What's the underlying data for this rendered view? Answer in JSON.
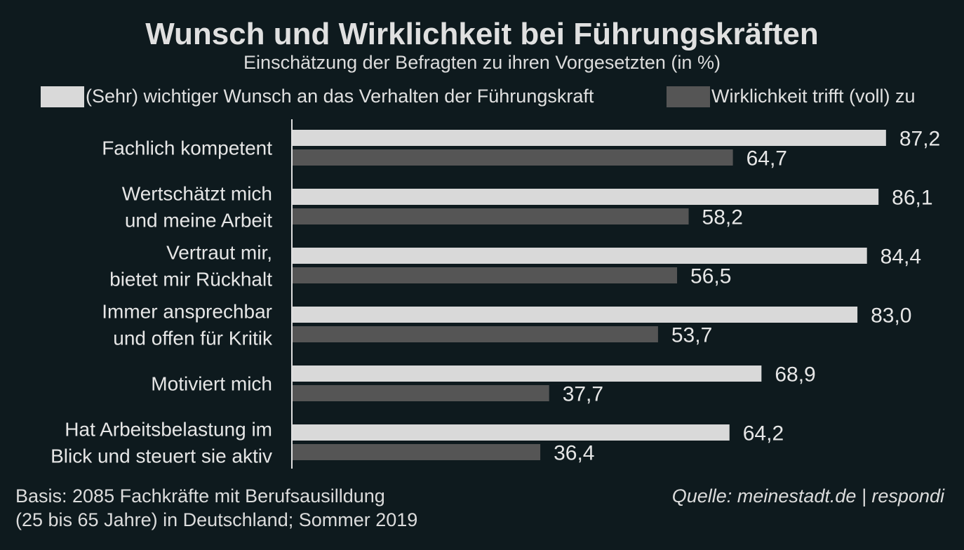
{
  "chart_data": {
    "type": "bar",
    "orientation": "horizontal",
    "title": "Wunsch und Wirklichkeit bei Führungskräften",
    "subtitle": "Einschätzung der Befragten zu ihren Vorgesetzten (in %)",
    "categories": [
      [
        "Fachlich kompetent"
      ],
      [
        "Wertschätzt mich",
        "und meine Arbeit"
      ],
      [
        "Vertraut mir,",
        "bietet mir Rückhalt"
      ],
      [
        "Immer ansprechbar",
        "und offen für Kritik"
      ],
      [
        "Motiviert mich"
      ],
      [
        "Hat Arbeitsbelastung im",
        "Blick und steuert sie aktiv"
      ]
    ],
    "series": [
      {
        "name": "(Sehr) wichtiger Wunsch an das Verhalten der Führungskraft",
        "color": "#d9d9d9",
        "values": [
          87.2,
          86.1,
          84.4,
          83.0,
          68.9,
          64.2
        ],
        "labels": [
          "87,2",
          "86,1",
          "84,4",
          "83,0",
          "68,9",
          "64,2"
        ]
      },
      {
        "name": "Wirklichkeit trifft (voll) zu",
        "color": "#555555",
        "values": [
          64.7,
          58.2,
          56.5,
          53.7,
          37.7,
          36.4
        ],
        "labels": [
          "64,7",
          "58,2",
          "56,5",
          "53,7",
          "37,7",
          "36,4"
        ]
      }
    ],
    "xlim": [
      0,
      100
    ],
    "grid": false,
    "legend": "top"
  },
  "footer": {
    "basis_line1": "Basis: 2085 Fachkräfte mit Berufsausilldung",
    "basis_line2": "(25 bis 65 Jahre) in Deutschland; Sommer 2019",
    "source": "Quelle: meinestadt.de | respondi"
  },
  "background": "#0e1a1e"
}
